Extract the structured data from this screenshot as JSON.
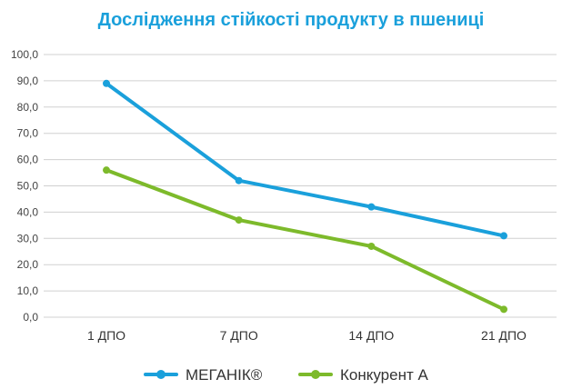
{
  "chart_data": {
    "type": "line",
    "title": "Дослідження стійкості продукту в пшениці",
    "categories": [
      "1 ДПО",
      "7 ДПО",
      "14 ДПО",
      "21 ДПО"
    ],
    "series": [
      {
        "name": "МЕГАНІК®",
        "values": [
          89,
          52,
          42,
          31
        ],
        "color": "#1aa0db"
      },
      {
        "name": "Конкурент А",
        "values": [
          56,
          37,
          27,
          3
        ],
        "color": "#7dba2b"
      }
    ],
    "ylim": [
      0,
      100
    ],
    "yticks": [
      "0,0",
      "10,0",
      "20,0",
      "30,0",
      "40,0",
      "50,0",
      "60,0",
      "70,0",
      "80,0",
      "90,0",
      "100,0"
    ],
    "grid": true,
    "legend": "bottom",
    "xlabel": "",
    "ylabel": ""
  },
  "colors": {
    "title": "#1aa0db",
    "grid": "#d0d0d0"
  }
}
